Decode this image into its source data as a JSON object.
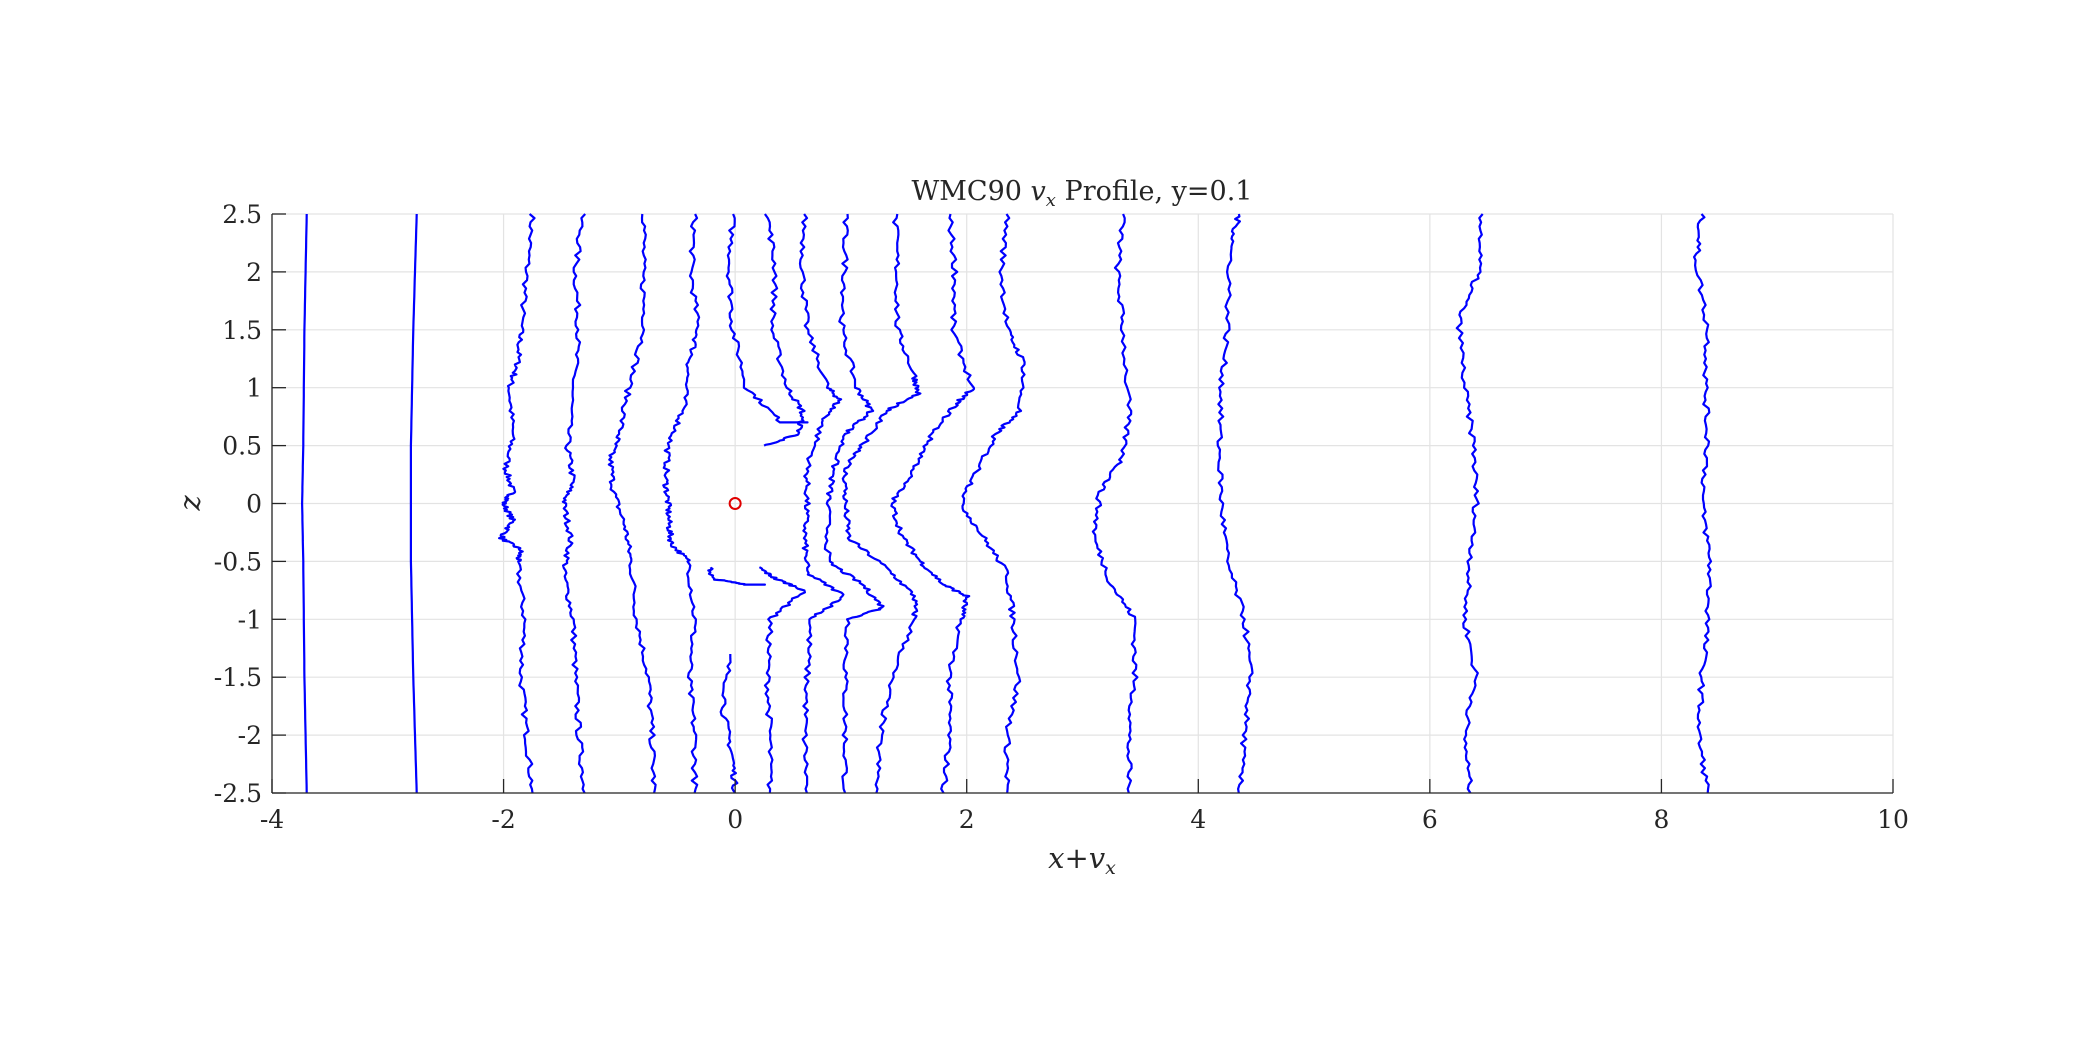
{
  "chart_data": {
    "type": "line",
    "title": "WMC90 v_x Profile, y=0.1",
    "title_parts": {
      "prefix": "WMC90 ",
      "var": "v",
      "sub": "x",
      "suffix": " Profile, y=0.1"
    },
    "xlabel": "x+v_x",
    "xlabel_parts": {
      "a": "x",
      "op": "+",
      "var": "v",
      "sub": "x"
    },
    "ylabel": "z",
    "xlim": [
      -4,
      10
    ],
    "ylim": [
      -2.5,
      2.5
    ],
    "xticks": [
      "-4",
      "-2",
      "0",
      "2",
      "4",
      "6",
      "8",
      "10"
    ],
    "yticks": [
      "2.5",
      "2",
      "1.5",
      "1",
      "0.5",
      "0",
      "-0.5",
      "-1",
      "-1.5",
      "-2",
      "-2.5"
    ],
    "grid": true,
    "line_color": "#0000ff",
    "marker_color": "#e00000",
    "marker": {
      "x": 0,
      "z": 0,
      "symbol": "circle"
    },
    "series": [
      {
        "x0": -3.75,
        "values": [
          [
            -3.7,
            2.5
          ],
          [
            -3.72,
            1.5
          ],
          [
            -3.73,
            0.5
          ],
          [
            -3.74,
            0
          ],
          [
            -3.73,
            -0.5
          ],
          [
            -3.72,
            -1.5
          ],
          [
            -3.7,
            -2.5
          ]
        ]
      },
      {
        "x0": -2.8,
        "values": [
          [
            -2.75,
            2.5
          ],
          [
            -2.78,
            1.5
          ],
          [
            -2.8,
            0.5
          ],
          [
            -2.8,
            0
          ],
          [
            -2.8,
            -0.5
          ],
          [
            -2.78,
            -1.5
          ],
          [
            -2.75,
            -2.5
          ]
        ]
      },
      {
        "x0": -1.9,
        "values": [
          [
            -1.75,
            2.5
          ],
          [
            -1.8,
            2.0
          ],
          [
            -1.85,
            1.5
          ],
          [
            -1.88,
            1.2
          ],
          [
            -1.95,
            1.0
          ],
          [
            -1.92,
            0.6
          ],
          [
            -1.98,
            0.3
          ],
          [
            -1.92,
            0.1
          ],
          [
            -2.0,
            0
          ],
          [
            -1.92,
            -0.15
          ],
          [
            -2.02,
            -0.3
          ],
          [
            -1.85,
            -0.4
          ],
          [
            -1.88,
            -0.5
          ],
          [
            -1.82,
            -1.0
          ],
          [
            -1.85,
            -1.5
          ],
          [
            -1.8,
            -2.0
          ],
          [
            -1.75,
            -2.5
          ]
        ]
      },
      {
        "x0": -1.3,
        "values": [
          [
            -1.32,
            2.5
          ],
          [
            -1.38,
            2.0
          ],
          [
            -1.35,
            1.5
          ],
          [
            -1.4,
            1.0
          ],
          [
            -1.45,
            0.5
          ],
          [
            -1.4,
            0.2
          ],
          [
            -1.48,
            0
          ],
          [
            -1.42,
            -0.3
          ],
          [
            -1.48,
            -0.6
          ],
          [
            -1.4,
            -1.0
          ],
          [
            -1.38,
            -1.5
          ],
          [
            -1.35,
            -2.0
          ],
          [
            -1.3,
            -2.5
          ]
        ]
      },
      {
        "x0": -0.8,
        "values": [
          [
            -0.78,
            2.5
          ],
          [
            -0.8,
            2.0
          ],
          [
            -0.78,
            1.5
          ],
          [
            -0.92,
            1.0
          ],
          [
            -1.0,
            0.6
          ],
          [
            -1.08,
            0.4
          ],
          [
            -1.05,
            0.1
          ],
          [
            -0.95,
            -0.2
          ],
          [
            -0.9,
            -0.5
          ],
          [
            -0.85,
            -1.0
          ],
          [
            -0.75,
            -1.5
          ],
          [
            -0.72,
            -2.0
          ],
          [
            -0.7,
            -2.5
          ]
        ]
      },
      {
        "x0": -0.35,
        "values": [
          [
            -0.35,
            2.5
          ],
          [
            -0.38,
            2.0
          ],
          [
            -0.32,
            1.5
          ],
          [
            -0.4,
            1.2
          ],
          [
            -0.45,
            0.8
          ],
          [
            -0.58,
            0.5
          ],
          [
            -0.6,
            0.2
          ],
          [
            -0.58,
            0
          ],
          [
            -0.57,
            -0.2
          ],
          [
            -0.55,
            -0.35
          ],
          [
            -0.4,
            -0.5
          ],
          [
            -0.35,
            -1.0
          ],
          [
            -0.4,
            -1.5
          ],
          [
            -0.35,
            -2.0
          ],
          [
            -0.35,
            -2.5
          ]
        ]
      },
      {
        "x0": 0.0,
        "values": [
          [
            -0.02,
            2.5
          ],
          [
            -0.05,
            2.0
          ],
          [
            -0.02,
            1.5
          ],
          [
            0.1,
            1.0
          ],
          [
            0.4,
            0.7
          ],
          [
            0.62,
            0.7
          ]
        ]
      },
      {
        "x0": 0.0,
        "values": [
          [
            -0.22,
            -0.55
          ],
          [
            -0.2,
            -0.65
          ],
          [
            0.1,
            -0.7
          ],
          [
            0.25,
            -0.7
          ]
        ]
      },
      {
        "x0": 0.0,
        "values": [
          [
            -0.05,
            -1.3
          ],
          [
            -0.1,
            -1.8
          ],
          [
            -0.02,
            -2.2
          ],
          [
            0.0,
            -2.5
          ]
        ]
      },
      {
        "x0": 0.3,
        "values": [
          [
            0.28,
            2.5
          ],
          [
            0.35,
            2.0
          ],
          [
            0.32,
            1.5
          ],
          [
            0.45,
            1.0
          ],
          [
            0.58,
            0.8
          ],
          [
            0.55,
            0.6
          ],
          [
            0.25,
            0.5
          ]
        ]
      },
      {
        "x0": 0.3,
        "values": [
          [
            0.2,
            -0.55
          ],
          [
            0.35,
            -0.65
          ],
          [
            0.6,
            -0.75
          ],
          [
            0.3,
            -1.0
          ],
          [
            0.28,
            -1.5
          ],
          [
            0.3,
            -2.0
          ],
          [
            0.3,
            -2.5
          ]
        ]
      },
      {
        "x0": 0.6,
        "values": [
          [
            0.6,
            2.5
          ],
          [
            0.58,
            2.0
          ],
          [
            0.62,
            1.5
          ],
          [
            0.8,
            1.0
          ],
          [
            0.9,
            0.9
          ],
          [
            0.75,
            0.7
          ],
          [
            0.62,
            0.3
          ],
          [
            0.62,
            0
          ],
          [
            0.6,
            -0.3
          ],
          [
            0.62,
            -0.6
          ],
          [
            0.95,
            -0.8
          ],
          [
            0.65,
            -1.0
          ],
          [
            0.62,
            -1.5
          ],
          [
            0.6,
            -2.0
          ],
          [
            0.62,
            -2.5
          ]
        ]
      },
      {
        "x0": 0.95,
        "values": [
          [
            0.95,
            2.5
          ],
          [
            0.95,
            2.0
          ],
          [
            0.92,
            1.5
          ],
          [
            1.05,
            1.0
          ],
          [
            1.18,
            0.8
          ],
          [
            0.95,
            0.6
          ],
          [
            0.85,
            0.3
          ],
          [
            0.8,
            0
          ],
          [
            0.8,
            -0.5
          ],
          [
            1.1,
            -0.7
          ],
          [
            1.28,
            -0.9
          ],
          [
            0.98,
            -1.0
          ],
          [
            0.95,
            -1.5
          ],
          [
            0.95,
            -2.0
          ],
          [
            0.95,
            -2.5
          ]
        ]
      },
      {
        "x0": 1.45,
        "values": [
          [
            1.38,
            2.5
          ],
          [
            1.4,
            2.0
          ],
          [
            1.4,
            1.5
          ],
          [
            1.55,
            1.1
          ],
          [
            1.58,
            0.95
          ],
          [
            1.3,
            0.8
          ],
          [
            1.1,
            0.5
          ],
          [
            0.95,
            0.3
          ],
          [
            0.95,
            0
          ],
          [
            0.98,
            -0.3
          ],
          [
            1.3,
            -0.55
          ],
          [
            1.55,
            -0.8
          ],
          [
            1.55,
            -1.0
          ],
          [
            1.35,
            -1.5
          ],
          [
            1.25,
            -2.0
          ],
          [
            1.22,
            -2.5
          ]
        ]
      },
      {
        "x0": 1.9,
        "values": [
          [
            1.85,
            2.5
          ],
          [
            1.9,
            2.0
          ],
          [
            1.88,
            1.5
          ],
          [
            2.05,
            1.0
          ],
          [
            1.9,
            0.85
          ],
          [
            1.7,
            0.6
          ],
          [
            1.55,
            0.3
          ],
          [
            1.35,
            0
          ],
          [
            1.45,
            -0.3
          ],
          [
            1.6,
            -0.5
          ],
          [
            1.8,
            -0.7
          ],
          [
            2.0,
            -0.8
          ],
          [
            1.95,
            -1.0
          ],
          [
            1.85,
            -1.5
          ],
          [
            1.85,
            -2.0
          ],
          [
            1.8,
            -2.5
          ]
        ]
      },
      {
        "x0": 2.3,
        "values": [
          [
            2.35,
            2.5
          ],
          [
            2.3,
            2.0
          ],
          [
            2.35,
            1.5
          ],
          [
            2.5,
            1.2
          ],
          [
            2.45,
            0.8
          ],
          [
            2.25,
            0.6
          ],
          [
            2.1,
            0.3
          ],
          [
            1.95,
            0
          ],
          [
            2.15,
            -0.3
          ],
          [
            2.35,
            -0.6
          ],
          [
            2.4,
            -1.0
          ],
          [
            2.45,
            -1.5
          ],
          [
            2.35,
            -2.0
          ],
          [
            2.35,
            -2.5
          ]
        ]
      },
      {
        "x0": 3.4,
        "values": [
          [
            3.35,
            2.5
          ],
          [
            3.3,
            2.0
          ],
          [
            3.35,
            1.5
          ],
          [
            3.4,
            0.8
          ],
          [
            3.35,
            0.4
          ],
          [
            3.15,
            0.1
          ],
          [
            3.1,
            -0.3
          ],
          [
            3.25,
            -0.7
          ],
          [
            3.45,
            -1.0
          ],
          [
            3.45,
            -1.5
          ],
          [
            3.4,
            -2.0
          ],
          [
            3.4,
            -2.5
          ]
        ]
      },
      {
        "x0": 4.35,
        "values": [
          [
            4.35,
            2.5
          ],
          [
            4.28,
            2.2
          ],
          [
            4.25,
            1.5
          ],
          [
            4.2,
            1.0
          ],
          [
            4.18,
            0.5
          ],
          [
            4.2,
            0
          ],
          [
            4.25,
            -0.5
          ],
          [
            4.4,
            -1.0
          ],
          [
            4.45,
            -1.5
          ],
          [
            4.4,
            -2.0
          ],
          [
            4.35,
            -2.5
          ]
        ]
      },
      {
        "x0": 6.4,
        "values": [
          [
            6.45,
            2.5
          ],
          [
            6.42,
            2.0
          ],
          [
            6.25,
            1.6
          ],
          [
            6.3,
            1.0
          ],
          [
            6.38,
            0.5
          ],
          [
            6.4,
            0
          ],
          [
            6.35,
            -0.5
          ],
          [
            6.3,
            -1.0
          ],
          [
            6.4,
            -1.5
          ],
          [
            6.3,
            -2.0
          ],
          [
            6.35,
            -2.5
          ]
        ]
      },
      {
        "x0": 8.35,
        "values": [
          [
            8.35,
            2.5
          ],
          [
            8.3,
            2.1
          ],
          [
            8.4,
            1.5
          ],
          [
            8.38,
            1.0
          ],
          [
            8.4,
            0.5
          ],
          [
            8.35,
            0
          ],
          [
            8.42,
            -0.5
          ],
          [
            8.4,
            -1.0
          ],
          [
            8.35,
            -1.5
          ],
          [
            8.32,
            -2.0
          ],
          [
            8.4,
            -2.5
          ]
        ]
      }
    ]
  }
}
